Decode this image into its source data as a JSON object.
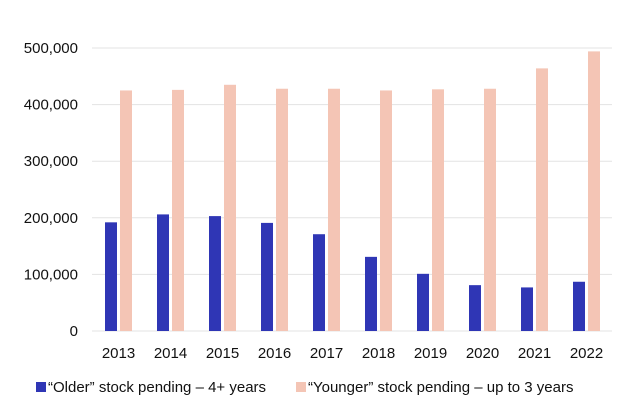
{
  "chart_data": {
    "type": "bar",
    "title": "",
    "xlabel": "",
    "ylabel": "",
    "categories": [
      "2013",
      "2014",
      "2015",
      "2016",
      "2017",
      "2018",
      "2019",
      "2020",
      "2021",
      "2022"
    ],
    "series": [
      {
        "name": "“Older” stock pending – 4+ years",
        "color": "#2F36B5",
        "values": [
          192000,
          206000,
          203000,
          191000,
          171000,
          131000,
          101000,
          81000,
          77000,
          87000
        ]
      },
      {
        "name": "“Younger” stock pending – up to 3 years",
        "color": "#F4C5B5",
        "values": [
          425000,
          426000,
          435000,
          428000,
          428000,
          425000,
          427000,
          428000,
          464000,
          494000
        ]
      }
    ],
    "ylim": [
      0,
      500000
    ],
    "yticks": [
      0,
      100000,
      200000,
      300000,
      400000,
      500000
    ],
    "ytick_labels": [
      "0",
      "100,000",
      "200,000",
      "300,000",
      "400,000",
      "500,000"
    ],
    "grid": true,
    "gridline_color": "#e3e3e3",
    "legend": {
      "position": "bottom",
      "items": [
        "“Older” stock pending – 4+ years",
        "“Younger” stock pending – up to 3 years"
      ]
    }
  }
}
